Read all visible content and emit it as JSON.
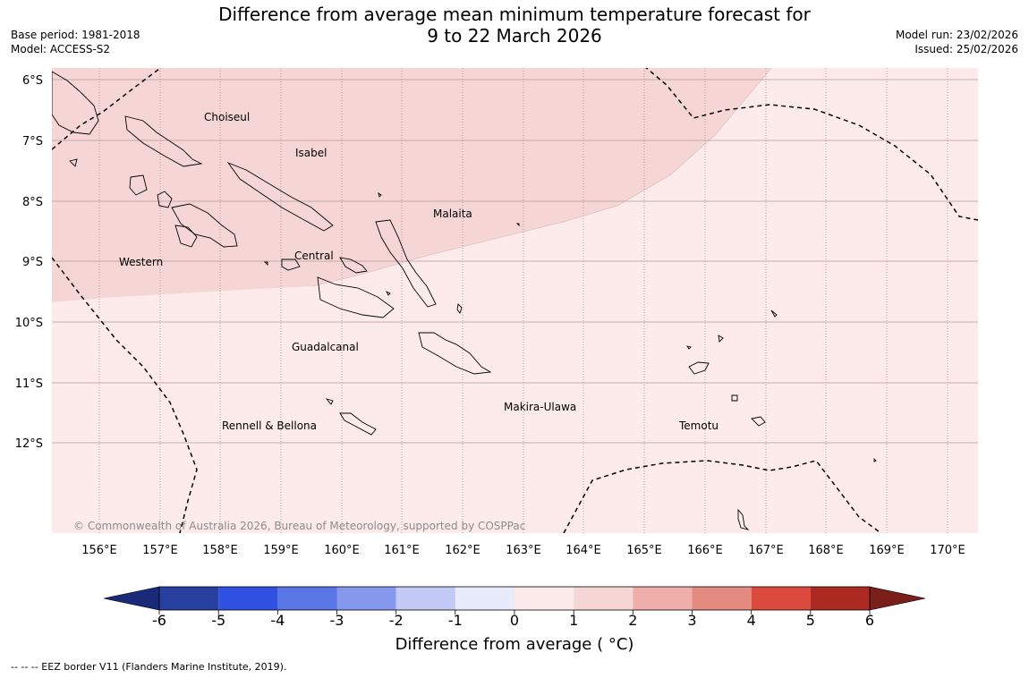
{
  "title_line1": "Difference from average mean minimum temperature forecast for",
  "title_line2": "9 to 22 March 2026",
  "meta": {
    "base_period": "Base period: 1981-2018",
    "model": "Model: ACCESS-S2",
    "model_run": "Model run: 23/02/2026",
    "issued": "Issued: 25/02/2026"
  },
  "copyright": "© Commonwealth of Australia 2026, Bureau of Meteorology, supported by COSPPac",
  "lat_labels": [
    "6°S",
    "7°S",
    "8°S",
    "9°S",
    "10°S",
    "11°S",
    "12°S"
  ],
  "lon_labels": [
    "156°E",
    "157°E",
    "158°E",
    "159°E",
    "160°E",
    "161°E",
    "162°E",
    "163°E",
    "164°E",
    "165°E",
    "166°E",
    "167°E",
    "168°E",
    "169°E",
    "170°E"
  ],
  "places": [
    "Choiseul",
    "Isabel",
    "Malaita",
    "Western",
    "Central",
    "Guadalcanal",
    "Makira-Ulawa",
    "Rennell & Bellona",
    "Temotu"
  ],
  "colorbar": {
    "ticks": [
      "-6",
      "-5",
      "-4",
      "-3",
      "-2",
      "-1",
      "0",
      "1",
      "2",
      "3",
      "4",
      "5",
      "6"
    ],
    "colors": [
      "#27409f",
      "#2f50e0",
      "#5a75e6",
      "#8598ec",
      "#c2c9f5",
      "#e8ebfc",
      "#fcebea",
      "#f6d6d4",
      "#eeafab",
      "#e58a80",
      "#dc4a3d",
      "#ad2a23"
    ],
    "low_extend_color": "#1a2a78",
    "high_extend_color": "#7a1f1a",
    "label": "Difference from average ( °C)"
  },
  "footnote": "--  --  -- EEZ border V11 (Flanders Marine Institute, 2019)."
}
